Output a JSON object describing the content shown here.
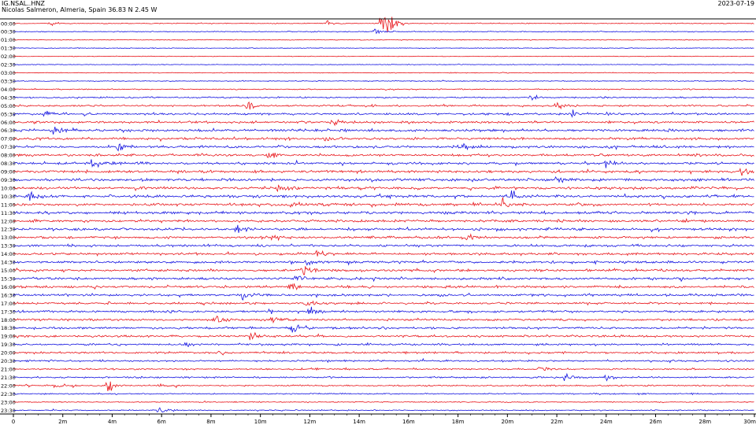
{
  "header": {
    "station": "IG.NSAL..HNZ",
    "location": "Nicolas Salmeron, Almeria, Spain  36.83 N 2.45 W",
    "date": "2023-07-19"
  },
  "chart_data": {
    "type": "line",
    "title": "IG.NSAL..HNZ",
    "row_labels": [
      "00:00",
      "00:30",
      "01:00",
      "01:30",
      "02:00",
      "02:30",
      "03:00",
      "03:30",
      "04:00",
      "04:30",
      "05:00",
      "05:30",
      "06:00",
      "06:30",
      "07:00",
      "07:30",
      "08:00",
      "08:30",
      "09:00",
      "09:30",
      "10:00",
      "10:30",
      "11:00",
      "11:30",
      "12:00",
      "12:30",
      "13:00",
      "13:30",
      "14:00",
      "14:30",
      "15:00",
      "15:30",
      "16:00",
      "16:30",
      "17:00",
      "17:30",
      "18:00",
      "18:30",
      "19:00",
      "19:30",
      "20:00",
      "20:30",
      "21:00",
      "21:30",
      "22:00",
      "22:30",
      "23:00",
      "23:30"
    ],
    "x_ticks": [
      "0",
      "2m",
      "4m",
      "6m",
      "8m",
      "10m",
      "12m",
      "14m",
      "16m",
      "18m",
      "20m",
      "22m",
      "24m",
      "26m",
      "28m",
      "30m"
    ],
    "xlim": [
      0,
      30
    ],
    "row_colors": [
      "#e8161b",
      "#1414e0"
    ],
    "row_noise_level": [
      0.5,
      0.5,
      0.4,
      0.4,
      0.35,
      0.4,
      0.45,
      0.5,
      0.6,
      0.8,
      1.0,
      1.2,
      1.3,
      1.4,
      1.3,
      1.4,
      1.3,
      1.4,
      1.4,
      1.5,
      1.5,
      1.5,
      1.5,
      1.5,
      1.4,
      1.4,
      1.3,
      1.3,
      1.3,
      1.3,
      1.3,
      1.3,
      1.3,
      1.3,
      1.2,
      1.2,
      1.2,
      1.2,
      1.2,
      1.1,
      1.1,
      1.0,
      0.9,
      0.9,
      0.8,
      0.7,
      0.6,
      0.6
    ],
    "events": [
      {
        "row": 0,
        "minute": 14.9,
        "amplitude": 5
      },
      {
        "row": 0,
        "minute": 15.1,
        "amplitude": 7
      },
      {
        "row": 0,
        "minute": 1.5,
        "amplitude": 1.5
      },
      {
        "row": 0,
        "minute": 12.7,
        "amplitude": 1.5
      },
      {
        "row": 1,
        "minute": 14.6,
        "amplitude": 2
      },
      {
        "row": 9,
        "minute": 21.0,
        "amplitude": 1.5
      },
      {
        "row": 10,
        "minute": 9.5,
        "amplitude": 2
      },
      {
        "row": 10,
        "minute": 22.0,
        "amplitude": 1.8
      },
      {
        "row": 11,
        "minute": 1.3,
        "amplitude": 2
      },
      {
        "row": 11,
        "minute": 22.6,
        "amplitude": 2
      },
      {
        "row": 12,
        "minute": 12.9,
        "amplitude": 2.5
      },
      {
        "row": 13,
        "minute": 1.6,
        "amplitude": 2.5
      },
      {
        "row": 14,
        "minute": 12.6,
        "amplitude": 2
      },
      {
        "row": 15,
        "minute": 4.2,
        "amplitude": 2.5
      },
      {
        "row": 15,
        "minute": 18.2,
        "amplitude": 1.8
      },
      {
        "row": 16,
        "minute": 10.3,
        "amplitude": 2
      },
      {
        "row": 17,
        "minute": 3.2,
        "amplitude": 2.5
      },
      {
        "row": 17,
        "minute": 24.0,
        "amplitude": 2
      },
      {
        "row": 18,
        "minute": 29.5,
        "amplitude": 1.8
      },
      {
        "row": 19,
        "minute": 22.0,
        "amplitude": 2
      },
      {
        "row": 20,
        "minute": 10.7,
        "amplitude": 2.5
      },
      {
        "row": 21,
        "minute": 0.7,
        "amplitude": 2.5
      },
      {
        "row": 21,
        "minute": 20.2,
        "amplitude": 2.2
      },
      {
        "row": 22,
        "minute": 11.2,
        "amplitude": 2.5
      },
      {
        "row": 22,
        "minute": 19.8,
        "amplitude": 2.5
      },
      {
        "row": 25,
        "minute": 9.0,
        "amplitude": 2.5
      },
      {
        "row": 26,
        "minute": 10.5,
        "amplitude": 2
      },
      {
        "row": 26,
        "minute": 18.4,
        "amplitude": 1.8
      },
      {
        "row": 28,
        "minute": 12.3,
        "amplitude": 2.5
      },
      {
        "row": 29,
        "minute": 11.9,
        "amplitude": 2.5
      },
      {
        "row": 30,
        "minute": 11.7,
        "amplitude": 2.5
      },
      {
        "row": 31,
        "minute": 11.4,
        "amplitude": 2.5
      },
      {
        "row": 32,
        "minute": 11.2,
        "amplitude": 2.5
      },
      {
        "row": 33,
        "minute": 9.3,
        "amplitude": 2.2
      },
      {
        "row": 34,
        "minute": 11.9,
        "amplitude": 2.5
      },
      {
        "row": 35,
        "minute": 12.0,
        "amplitude": 2.5
      },
      {
        "row": 36,
        "minute": 8.2,
        "amplitude": 2.5
      },
      {
        "row": 36,
        "minute": 10.5,
        "amplitude": 2
      },
      {
        "row": 37,
        "minute": 11.3,
        "amplitude": 2.5
      },
      {
        "row": 38,
        "minute": 9.6,
        "amplitude": 2.5
      },
      {
        "row": 39,
        "minute": 6.9,
        "amplitude": 2.2
      },
      {
        "row": 40,
        "minute": 8.4,
        "amplitude": 2
      },
      {
        "row": 42,
        "minute": 21.3,
        "amplitude": 1.8
      },
      {
        "row": 43,
        "minute": 22.3,
        "amplitude": 2.2
      },
      {
        "row": 43,
        "minute": 24.0,
        "amplitude": 1.8
      },
      {
        "row": 44,
        "minute": 1.7,
        "amplitude": 2.5
      },
      {
        "row": 44,
        "minute": 3.8,
        "amplitude": 4
      },
      {
        "row": 44,
        "minute": 5.9,
        "amplitude": 1.8
      },
      {
        "row": 47,
        "minute": 5.9,
        "amplitude": 2
      }
    ]
  }
}
